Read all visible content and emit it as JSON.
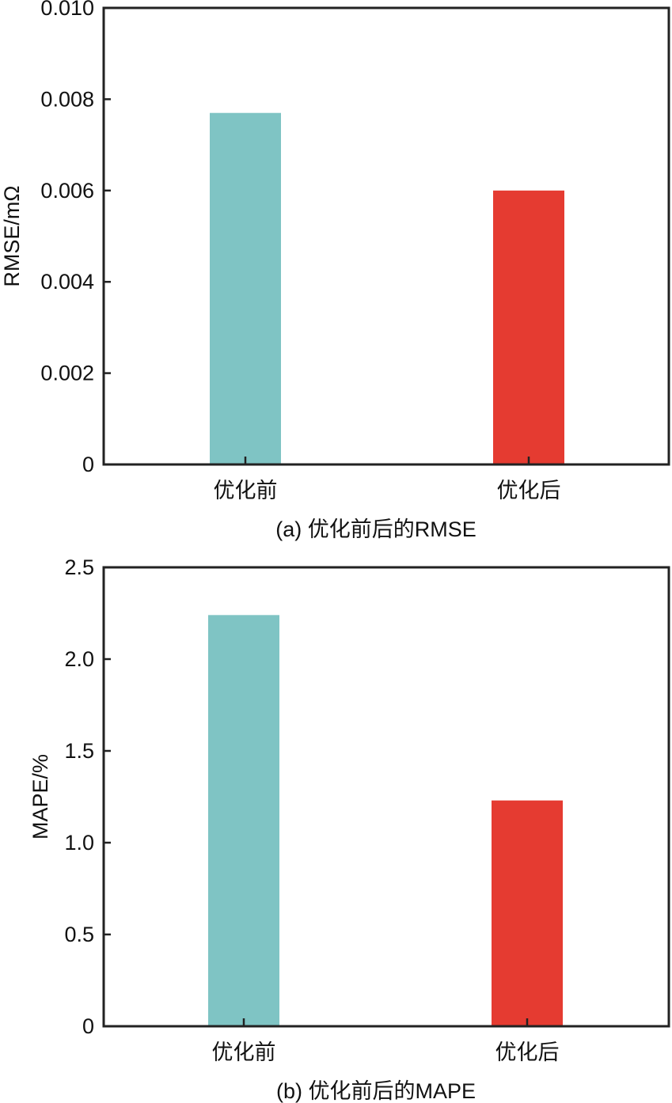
{
  "chart_data": [
    {
      "type": "bar",
      "caption": "(a) 优化前后的RMSE",
      "xlabel": "",
      "ylabel": "RMSE/mΩ",
      "ylim": [
        0,
        0.01
      ],
      "yticks": [
        "0",
        "0.002",
        "0.004",
        "0.006",
        "0.008",
        "0.010"
      ],
      "ytick_values": [
        0,
        0.002,
        0.004,
        0.006,
        0.008,
        0.01
      ],
      "categories": [
        "优化前",
        "优化后"
      ],
      "values": [
        0.0077,
        0.006
      ],
      "colors": [
        "#7fc4c4",
        "#e53b31"
      ],
      "grid": false
    },
    {
      "type": "bar",
      "caption": "(b) 优化前后的MAPE",
      "xlabel": "",
      "ylabel": "MAPE/%",
      "ylim": [
        0,
        2.5
      ],
      "yticks": [
        "0",
        "0.5",
        "1.0",
        "1.5",
        "2.0",
        "2.5"
      ],
      "ytick_values": [
        0,
        0.5,
        1.0,
        1.5,
        2.0,
        2.5
      ],
      "categories": [
        "优化前",
        "优化后"
      ],
      "values": [
        2.24,
        1.23
      ],
      "colors": [
        "#7fc4c4",
        "#e53b31"
      ],
      "grid": false
    }
  ]
}
